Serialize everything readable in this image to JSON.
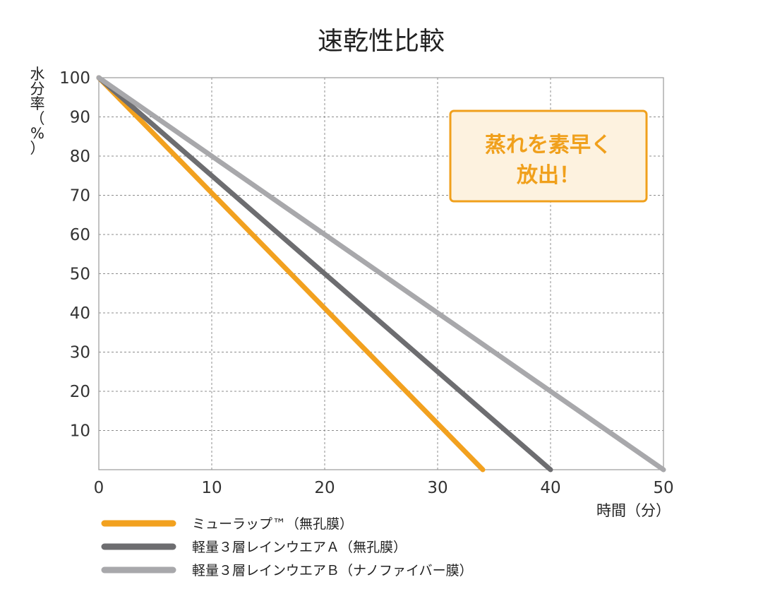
{
  "chart_data": {
    "type": "line",
    "title": "速乾性比較",
    "xlabel": "時間（分）",
    "ylabel": [
      "水",
      "分",
      "率",
      "（",
      "%",
      "）"
    ],
    "xlim": [
      0,
      50
    ],
    "ylim": [
      0,
      100
    ],
    "x_ticks": [
      "0",
      "10",
      "20",
      "30",
      "40",
      "50"
    ],
    "y_ticks": [
      "10",
      "20",
      "30",
      "40",
      "50",
      "60",
      "70",
      "80",
      "90",
      "100"
    ],
    "grid": true,
    "legend_position": "bottom-left",
    "series": [
      {
        "name": "ミューラップ™（無孔膜）",
        "color": "#f2a11f",
        "x": [
          0,
          34
        ],
        "y": [
          100,
          0
        ]
      },
      {
        "name": "軽量３層レインウエアＡ（無孔膜）",
        "color": "#6d6d70",
        "x": [
          0,
          40
        ],
        "y": [
          100,
          0
        ]
      },
      {
        "name": "軽量３層レインウエアＢ（ナノファイバー膜）",
        "color": "#a8a8ab",
        "x": [
          0,
          50
        ],
        "y": [
          100,
          0
        ]
      }
    ],
    "annotation": {
      "lines": [
        "蒸れを素早く",
        "放出！"
      ],
      "border_color": "#f0a01c",
      "background_color": "#fdf2df",
      "text_color": "#f0a01c"
    }
  }
}
